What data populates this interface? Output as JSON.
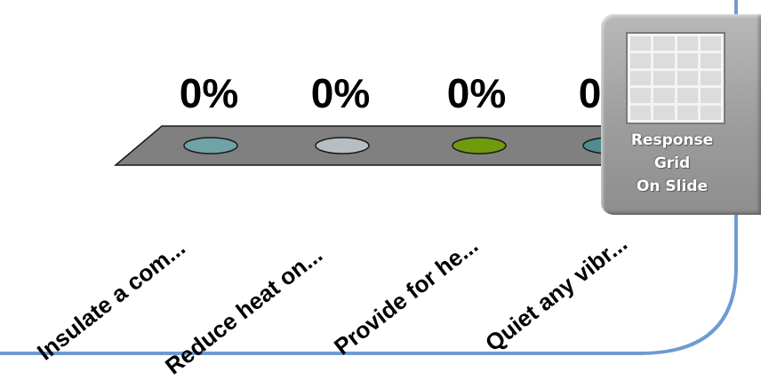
{
  "chart_data": {
    "type": "bar",
    "categories": [
      "Insulate a com...",
      "Reduce heat on...",
      "Provide for he...",
      "Quiet any vibr..."
    ],
    "values": [
      0,
      0,
      0,
      0
    ],
    "value_labels": [
      "0%",
      "0%",
      "0%",
      "0%"
    ],
    "colors": [
      "#6fa3a6",
      "#b7bec1",
      "#6f9a10",
      "#4f8c8e"
    ]
  },
  "widget": {
    "line1": "Response",
    "line2": "Grid",
    "line3": "On Slide"
  }
}
